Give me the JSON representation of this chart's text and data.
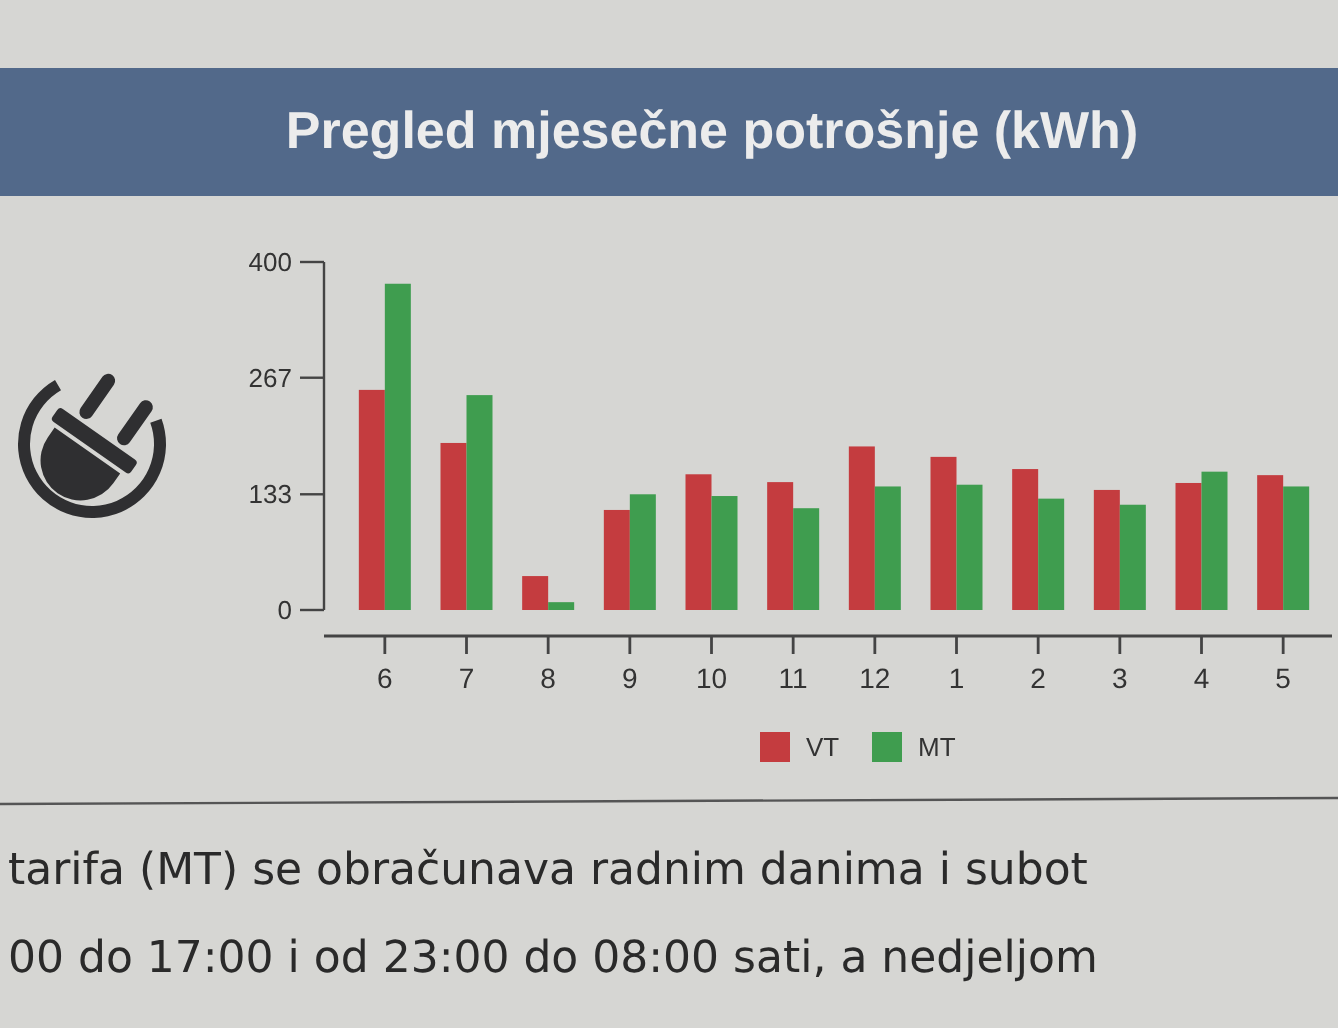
{
  "chart_data": {
    "type": "bar",
    "title": "Pregled mjesečne potrošnje (kWh)",
    "categories": [
      "6",
      "7",
      "8",
      "9",
      "10",
      "11",
      "12",
      "1",
      "2",
      "3",
      "4",
      "5"
    ],
    "series": [
      {
        "name": "VT",
        "color": "#c43c3f",
        "values": [
          253,
          192,
          39,
          115,
          156,
          147,
          188,
          176,
          162,
          138,
          146,
          155
        ]
      },
      {
        "name": "MT",
        "color": "#3f9d4f",
        "values": [
          375,
          247,
          9,
          133,
          131,
          117,
          142,
          144,
          128,
          121,
          159,
          142
        ]
      }
    ],
    "ylim": [
      0,
      400
    ],
    "yticks": [
      0,
      133,
      267,
      400
    ],
    "legend": "bottom",
    "annotations": [
      "tarifa (MT) se obračunava radnim danima i subot",
      "00 do 17:00 i od 23:00 do 08:00 sati, a nedjeljom"
    ]
  }
}
